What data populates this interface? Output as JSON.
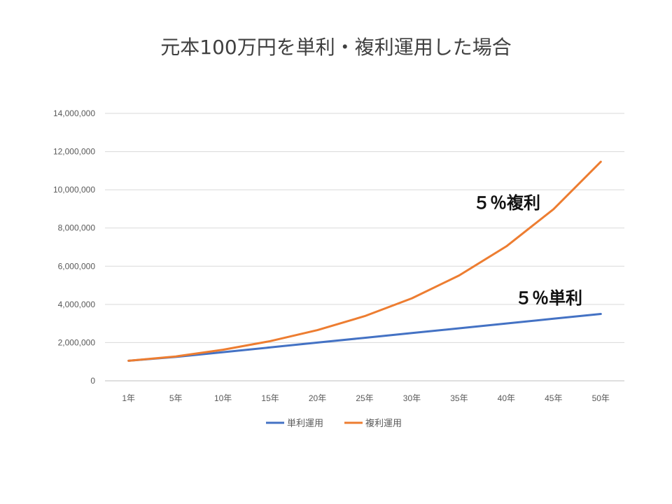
{
  "chart_data": {
    "type": "line",
    "title": "元本100万円を単利・複利運用した場合",
    "categories": [
      "1年",
      "5年",
      "10年",
      "15年",
      "20年",
      "25年",
      "30年",
      "35年",
      "40年",
      "45年",
      "50年"
    ],
    "series": [
      {
        "name": "単利運用",
        "color": "#4472C4",
        "values": [
          1050000,
          1250000,
          1500000,
          1750000,
          2000000,
          2250000,
          2500000,
          2750000,
          3000000,
          3250000,
          3500000
        ]
      },
      {
        "name": "複利運用",
        "color": "#ED7D31",
        "values": [
          1050000,
          1276282,
          1628895,
          2078928,
          2653298,
          3386355,
          4321942,
          5516015,
          7039989,
          8985008,
          11467400
        ]
      }
    ],
    "ylim": [
      0,
      14000000
    ],
    "yticks": [
      0,
      2000000,
      4000000,
      6000000,
      8000000,
      10000000,
      12000000,
      14000000
    ],
    "ytick_labels": [
      "0",
      "2,000,000",
      "4,000,000",
      "6,000,000",
      "8,000,000",
      "10,000,000",
      "12,000,000",
      "14,000,000"
    ],
    "grid": true,
    "legend": "bottom",
    "annotations": [
      {
        "text": "５％複利",
        "series": "複利運用"
      },
      {
        "text": "５％単利",
        "series": "単利運用"
      }
    ]
  }
}
